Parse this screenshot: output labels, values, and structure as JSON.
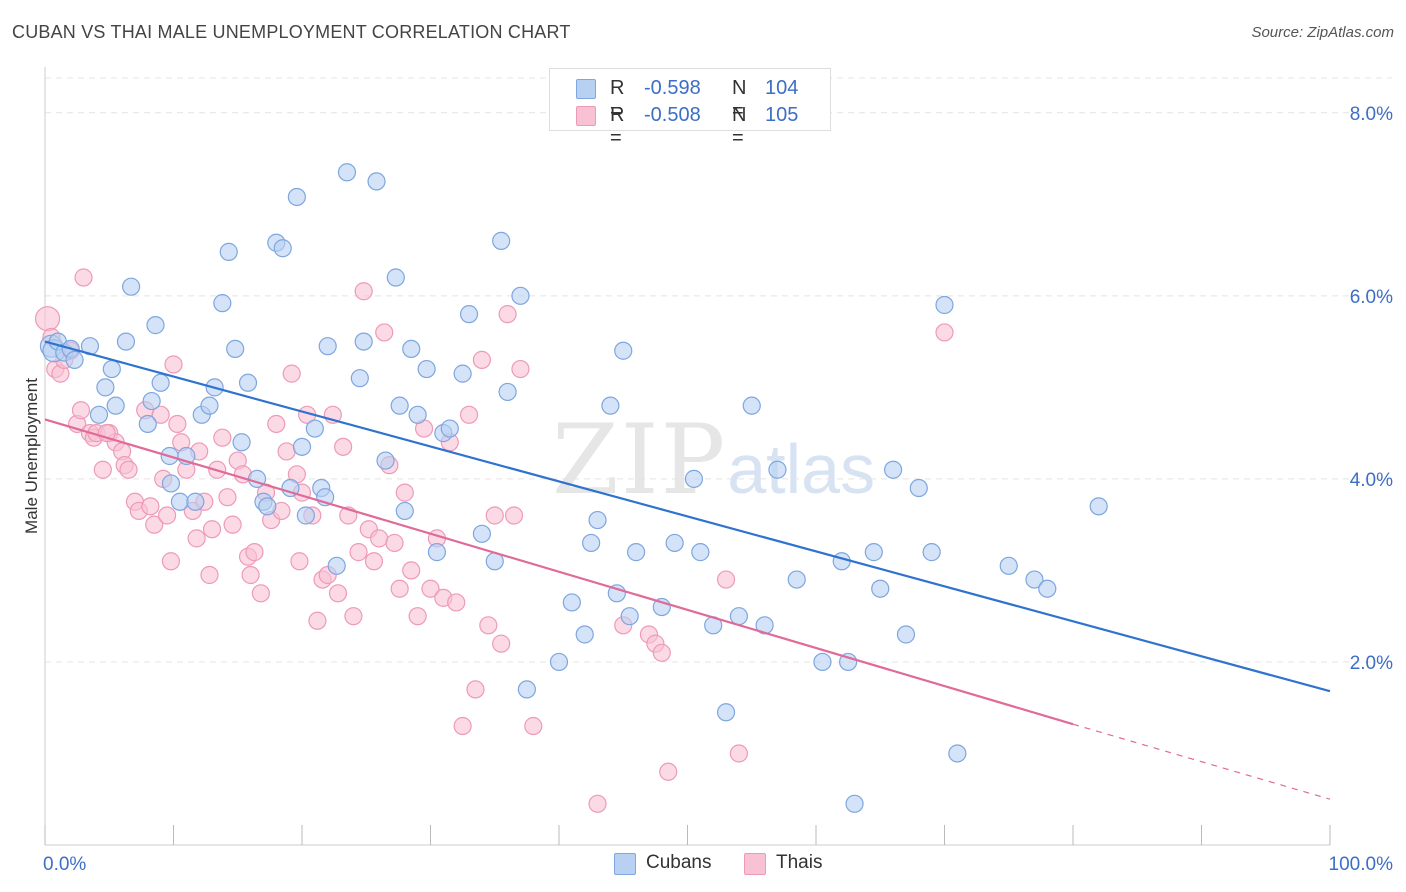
{
  "title": "CUBAN VS THAI MALE UNEMPLOYMENT CORRELATION CHART",
  "source": "Source: ZipAtlas.com",
  "watermark": {
    "zip": "ZIP",
    "atlas": "atlas"
  },
  "legend_top": [
    {
      "r_label": "R =",
      "r_value": "-0.598",
      "n_label": "N =",
      "n_value": "104"
    },
    {
      "r_label": "R =",
      "r_value": "-0.508",
      "n_label": "N =",
      "n_value": "105"
    }
  ],
  "legend_bottom": [
    "Cubans",
    "Thais"
  ],
  "colors": {
    "cubans_fill": "#b8d0f2",
    "cubans_stroke": "#7ea6df",
    "cubans_line": "#2f73cf",
    "thais_fill": "#f8c2d4",
    "thais_stroke": "#ee9ab6",
    "thais_line": "#e06a98",
    "tick_label": "#3d6ec5",
    "grid": "#e4e4e4"
  },
  "chart_data": {
    "type": "scatter",
    "title": "CUBAN VS THAI MALE UNEMPLOYMENT CORRELATION CHART",
    "xlabel": "",
    "ylabel": "Male Unemployment",
    "xlim": [
      0,
      100
    ],
    "ylim": [
      0,
      8.5
    ],
    "x_tick_labels": [
      "0.0%",
      "100.0%"
    ],
    "y_ticks": [
      2,
      4,
      6,
      8
    ],
    "y_tick_labels": [
      "2.0%",
      "4.0%",
      "6.0%",
      "8.0%"
    ],
    "grid": true,
    "legend_position": "top-center",
    "series": [
      {
        "name": "Cubans",
        "r": -0.598,
        "n": 104,
        "trend": {
          "x": [
            0,
            100
          ],
          "y": [
            5.5,
            1.68
          ]
        },
        "points": [
          [
            0.5,
            5.45
          ],
          [
            0.7,
            5.4
          ],
          [
            1,
            5.5
          ],
          [
            1.5,
            5.38
          ],
          [
            2,
            5.42
          ],
          [
            2.3,
            5.3
          ],
          [
            3.5,
            5.45
          ],
          [
            4.2,
            4.7
          ],
          [
            4.7,
            5
          ],
          [
            5.2,
            5.2
          ],
          [
            5.5,
            4.8
          ],
          [
            6.3,
            5.5
          ],
          [
            6.7,
            6.1
          ],
          [
            8,
            4.6
          ],
          [
            8.3,
            4.85
          ],
          [
            8.6,
            5.68
          ],
          [
            9,
            5.05
          ],
          [
            9.7,
            4.25
          ],
          [
            9.8,
            3.95
          ],
          [
            10.5,
            3.75
          ],
          [
            11,
            4.25
          ],
          [
            11.7,
            3.75
          ],
          [
            12.2,
            4.7
          ],
          [
            12.8,
            4.8
          ],
          [
            13.2,
            5
          ],
          [
            13.8,
            5.92
          ],
          [
            14.3,
            6.48
          ],
          [
            14.8,
            5.42
          ],
          [
            15.3,
            4.4
          ],
          [
            15.8,
            5.05
          ],
          [
            16.5,
            4
          ],
          [
            17,
            3.75
          ],
          [
            17.3,
            3.7
          ],
          [
            18,
            6.58
          ],
          [
            18.5,
            6.52
          ],
          [
            19.1,
            3.9
          ],
          [
            19.6,
            7.08
          ],
          [
            20,
            4.35
          ],
          [
            20.3,
            3.6
          ],
          [
            21,
            4.55
          ],
          [
            21.5,
            3.9
          ],
          [
            21.8,
            3.8
          ],
          [
            22,
            5.45
          ],
          [
            22.7,
            3.05
          ],
          [
            23.5,
            7.35
          ],
          [
            24.5,
            5.1
          ],
          [
            24.8,
            5.5
          ],
          [
            25.8,
            7.25
          ],
          [
            26.5,
            4.2
          ],
          [
            27.3,
            6.2
          ],
          [
            27.6,
            4.8
          ],
          [
            28,
            3.65
          ],
          [
            28.5,
            5.42
          ],
          [
            29,
            4.7
          ],
          [
            29.7,
            5.2
          ],
          [
            30.5,
            3.2
          ],
          [
            31,
            4.5
          ],
          [
            31.5,
            4.55
          ],
          [
            32.5,
            5.15
          ],
          [
            33,
            5.8
          ],
          [
            34,
            3.4
          ],
          [
            35,
            3.1
          ],
          [
            35.5,
            6.6
          ],
          [
            36,
            4.95
          ],
          [
            37,
            6.0
          ],
          [
            37.5,
            1.7
          ],
          [
            40,
            2.0
          ],
          [
            41,
            2.65
          ],
          [
            42,
            2.3
          ],
          [
            42.5,
            3.3
          ],
          [
            43,
            3.55
          ],
          [
            44,
            4.8
          ],
          [
            44.5,
            2.75
          ],
          [
            45,
            5.4
          ],
          [
            45.5,
            2.5
          ],
          [
            46,
            3.2
          ],
          [
            48,
            2.6
          ],
          [
            49,
            3.3
          ],
          [
            50.5,
            4
          ],
          [
            51,
            3.2
          ],
          [
            52,
            2.4
          ],
          [
            53,
            1.45
          ],
          [
            54,
            2.5
          ],
          [
            55,
            4.8
          ],
          [
            56,
            2.4
          ],
          [
            57,
            4.1
          ],
          [
            58.5,
            2.9
          ],
          [
            60.5,
            2.0
          ],
          [
            62,
            3.1
          ],
          [
            62.5,
            2.0
          ],
          [
            64.5,
            3.2
          ],
          [
            65,
            2.8
          ],
          [
            66,
            4.1
          ],
          [
            67,
            2.3
          ],
          [
            68,
            3.9
          ],
          [
            69,
            3.2
          ],
          [
            70,
            5.9
          ],
          [
            71,
            1.0
          ],
          [
            75,
            3.05
          ],
          [
            77,
            2.9
          ],
          [
            78,
            2.8
          ],
          [
            82,
            3.7
          ],
          [
            63,
            0.45
          ]
        ]
      },
      {
        "name": "Thais",
        "r": -0.508,
        "n": 105,
        "trend": {
          "x": [
            0,
            80
          ],
          "y": [
            4.65,
            1.32
          ]
        },
        "trend_dashed": {
          "x": [
            80,
            100
          ],
          "y": [
            1.32,
            0.5
          ]
        },
        "points": [
          [
            0.2,
            5.75
          ],
          [
            0.5,
            5.55
          ],
          [
            0.8,
            5.2
          ],
          [
            1.2,
            5.15
          ],
          [
            1.5,
            5.3
          ],
          [
            2,
            5.4
          ],
          [
            2.5,
            4.6
          ],
          [
            2.8,
            4.75
          ],
          [
            3,
            6.2
          ],
          [
            3.5,
            4.5
          ],
          [
            3.8,
            4.45
          ],
          [
            4,
            4.5
          ],
          [
            4.5,
            4.1
          ],
          [
            5,
            4.5
          ],
          [
            5.5,
            4.4
          ],
          [
            6,
            4.3
          ],
          [
            6.2,
            4.15
          ],
          [
            6.5,
            4.1
          ],
          [
            7,
            3.75
          ],
          [
            7.3,
            3.65
          ],
          [
            7.8,
            4.75
          ],
          [
            8.2,
            3.7
          ],
          [
            8.5,
            3.5
          ],
          [
            9,
            4.7
          ],
          [
            9.2,
            4.0
          ],
          [
            9.5,
            3.6
          ],
          [
            10,
            5.25
          ],
          [
            10.3,
            4.6
          ],
          [
            10.6,
            4.4
          ],
          [
            11,
            4.1
          ],
          [
            11.5,
            3.65
          ],
          [
            11.8,
            3.35
          ],
          [
            12,
            4.3
          ],
          [
            12.4,
            3.75
          ],
          [
            12.8,
            2.95
          ],
          [
            13,
            3.45
          ],
          [
            13.4,
            4.1
          ],
          [
            13.8,
            4.45
          ],
          [
            14.2,
            3.8
          ],
          [
            14.6,
            3.5
          ],
          [
            15,
            4.2
          ],
          [
            15.4,
            4.05
          ],
          [
            15.8,
            3.15
          ],
          [
            16.3,
            3.2
          ],
          [
            16.8,
            2.75
          ],
          [
            17.2,
            3.85
          ],
          [
            17.6,
            3.55
          ],
          [
            18,
            4.6
          ],
          [
            18.4,
            3.65
          ],
          [
            18.8,
            4.3
          ],
          [
            19.2,
            5.15
          ],
          [
            19.6,
            4.05
          ],
          [
            20,
            3.85
          ],
          [
            20.4,
            4.7
          ],
          [
            20.8,
            3.6
          ],
          [
            21.2,
            2.45
          ],
          [
            21.6,
            2.9
          ],
          [
            22,
            2.95
          ],
          [
            22.4,
            4.7
          ],
          [
            22.8,
            2.75
          ],
          [
            23.2,
            4.35
          ],
          [
            23.6,
            3.6
          ],
          [
            24,
            2.5
          ],
          [
            24.4,
            3.2
          ],
          [
            24.8,
            6.05
          ],
          [
            25.2,
            3.45
          ],
          [
            25.6,
            3.1
          ],
          [
            26,
            3.35
          ],
          [
            26.4,
            5.6
          ],
          [
            26.8,
            4.15
          ],
          [
            27.2,
            3.3
          ],
          [
            27.6,
            2.8
          ],
          [
            28,
            3.85
          ],
          [
            28.5,
            3.0
          ],
          [
            29,
            2.5
          ],
          [
            29.5,
            4.55
          ],
          [
            30,
            2.8
          ],
          [
            30.5,
            3.35
          ],
          [
            31,
            2.7
          ],
          [
            31.5,
            4.4
          ],
          [
            32,
            2.65
          ],
          [
            32.5,
            1.3
          ],
          [
            33,
            4.7
          ],
          [
            33.5,
            1.7
          ],
          [
            34,
            5.3
          ],
          [
            34.5,
            2.4
          ],
          [
            35,
            3.6
          ],
          [
            35.5,
            2.2
          ],
          [
            36,
            5.8
          ],
          [
            36.5,
            3.6
          ],
          [
            37,
            5.2
          ],
          [
            38,
            1.3
          ],
          [
            43,
            0.45
          ],
          [
            45,
            2.4
          ],
          [
            47,
            2.3
          ],
          [
            47.5,
            2.2
          ],
          [
            48,
            2.1
          ],
          [
            48.5,
            0.8
          ],
          [
            53,
            2.9
          ],
          [
            54,
            1.0
          ],
          [
            70,
            5.6
          ],
          [
            4.8,
            4.5
          ],
          [
            9.8,
            3.1
          ],
          [
            16,
            2.95
          ],
          [
            19.8,
            3.1
          ]
        ]
      }
    ]
  }
}
